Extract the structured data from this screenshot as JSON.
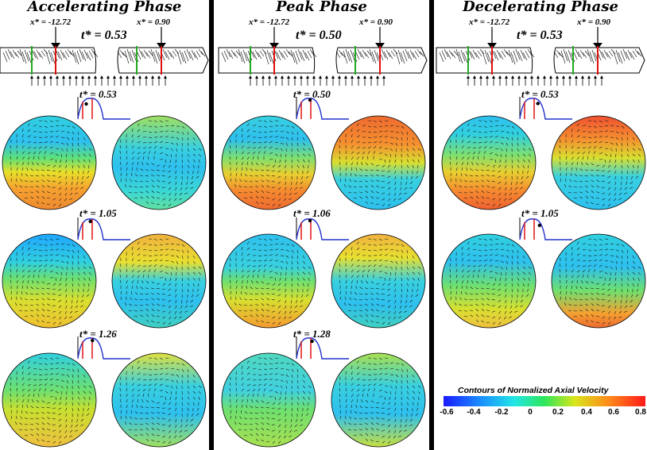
{
  "panels": [
    {
      "title": "Accelerating Phase",
      "x_left": "x* = -12.72",
      "x_right": "x* = 0.90",
      "t_main": "t* = 0.53",
      "rows": [
        {
          "t": "t* = 0.53",
          "pulse_pos": 0.25
        },
        {
          "t": "t* = 1.05",
          "pulse_pos": 0.45
        },
        {
          "t": "t* = 1.26",
          "pulse_pos": 0.55
        }
      ]
    },
    {
      "title": "Peak Phase",
      "x_left": "x* = -12.72",
      "x_right": "x* = 0.90",
      "t_main": "t* = 0.50",
      "rows": [
        {
          "t": "t* = 0.50",
          "pulse_pos": 0.5
        },
        {
          "t": "t* = 1.06",
          "pulse_pos": 0.5
        },
        {
          "t": "t* = 1.28",
          "pulse_pos": 0.6
        }
      ]
    },
    {
      "title": "Decelerating Phase",
      "x_left": "x* = -12.72",
      "x_right": "x* = 0.90",
      "t_main": "t* = 0.53",
      "rows": [
        {
          "t": "t* = 0.53",
          "pulse_pos": 0.72
        },
        {
          "t": "t* = 1.05",
          "pulse_pos": 0.8
        }
      ]
    }
  ],
  "legend": {
    "title": "Contours of Normalized Axial Velocity",
    "ticks": [
      "-0.6",
      "-0.4",
      "-0.2",
      "0",
      "0.2",
      "0.4",
      "0.6",
      "0.8"
    ]
  },
  "colors": {
    "pulse_line": "#2233cc",
    "red_marker": "#e01010",
    "green_marker": "#22aa22"
  }
}
